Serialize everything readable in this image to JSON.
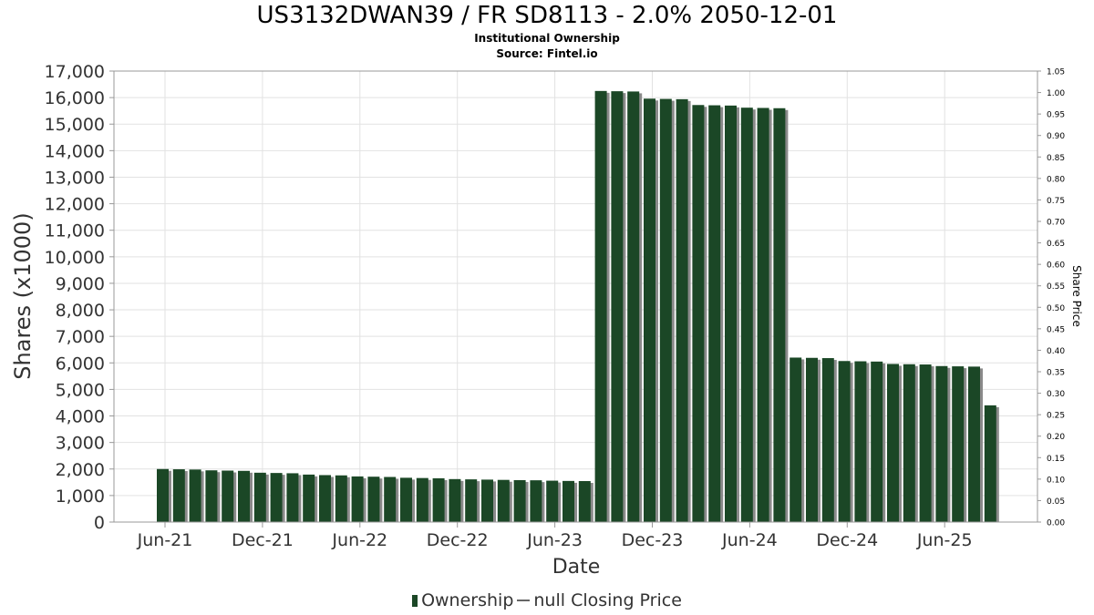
{
  "chart_data": {
    "type": "bar",
    "title": "US3132DWAN39 / FR SD8113 - 2.0% 2050-12-01",
    "subtitle": "Institutional Ownership",
    "source": "Source: Fintel.io",
    "xlabel": "Date",
    "ylabel": "Shares (x1000)",
    "y2label": "Share Price",
    "ylim": [
      0,
      17000
    ],
    "y2lim": [
      0,
      1.05
    ],
    "yticks": [
      "0",
      "1,000",
      "2,000",
      "3,000",
      "4,000",
      "5,000",
      "6,000",
      "7,000",
      "8,000",
      "9,000",
      "10,000",
      "11,000",
      "12,000",
      "13,000",
      "14,000",
      "15,000",
      "16,000",
      "17,000"
    ],
    "y2ticks": [
      "0.00",
      "0.05",
      "0.10",
      "0.15",
      "0.20",
      "0.25",
      "0.30",
      "0.35",
      "0.40",
      "0.45",
      "0.50",
      "0.55",
      "0.60",
      "0.65",
      "0.70",
      "0.75",
      "0.80",
      "0.85",
      "0.90",
      "0.95",
      "1.00",
      "1.05"
    ],
    "xticks": [
      "Jun-21",
      "Dec-21",
      "Jun-22",
      "Dec-22",
      "Jun-23",
      "Dec-23",
      "Jun-24",
      "Dec-24",
      "Jun-25"
    ],
    "grid": true,
    "legend_position": "bottom",
    "colors": {
      "bar": "#1b4726",
      "bar_shadow": "#8a8a8a",
      "line": "#666666"
    },
    "series": [
      {
        "name": "Ownership",
        "values": [
          2000,
          1990,
          1980,
          1950,
          1940,
          1930,
          1860,
          1850,
          1840,
          1790,
          1770,
          1760,
          1720,
          1710,
          1700,
          1670,
          1660,
          1650,
          1620,
          1610,
          1600,
          1590,
          1580,
          1575,
          1560,
          1550,
          1545,
          16250,
          16240,
          16230,
          15960,
          15950,
          15940,
          15720,
          15710,
          15700,
          15620,
          15610,
          15600,
          6200,
          6190,
          6180,
          6070,
          6060,
          6050,
          5960,
          5950,
          5940,
          5880,
          5870,
          5860,
          4400
        ]
      }
    ],
    "legend": [
      {
        "name": "Ownership"
      },
      {
        "name": "null Closing Price"
      }
    ]
  }
}
